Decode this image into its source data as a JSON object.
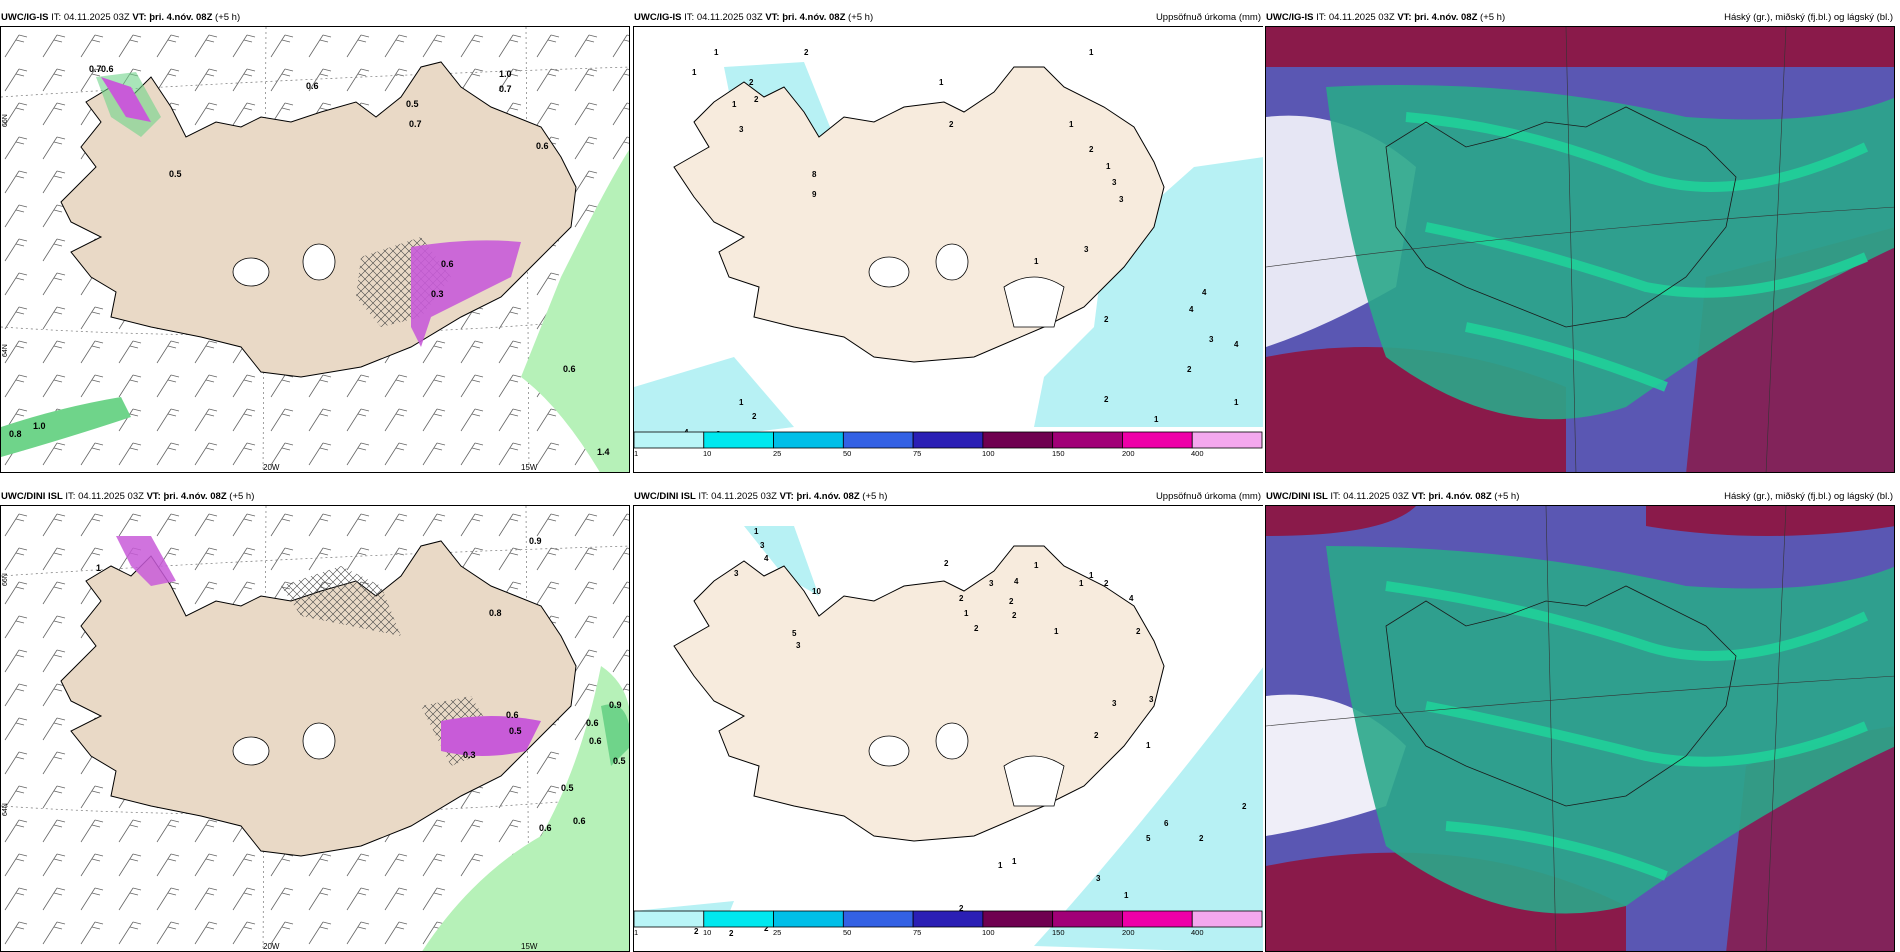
{
  "top_row": {
    "p1": {
      "model": "UWC/IG-IS",
      "it_label": "IT:",
      "it_value": "04.11.2025 03Z",
      "vt_label": "VT:",
      "vt_value": "þri. 4.nóv. 08Z",
      "lead": "(+5 h)",
      "right_title": ""
    },
    "p2": {
      "model": "UWC/IG-IS",
      "it_label": "IT:",
      "it_value": "04.11.2025 03Z",
      "vt_label": "VT:",
      "vt_value": "þri. 4.nóv. 08Z",
      "lead": "(+5 h)",
      "right_title": "Uppsöfnuð úrkoma (mm)"
    },
    "p3": {
      "model": "UWC/IG-IS",
      "it_label": "IT:",
      "it_value": "04.11.2025 03Z",
      "vt_label": "VT:",
      "vt_value": "þri. 4.nóv. 08Z",
      "lead": "(+5 h)",
      "right_title": "Háský (gr.), miðský (fj.bl.) og lágský (bl.)"
    }
  },
  "bottom_row": {
    "p4": {
      "model": "UWC/DINI ISL",
      "it_label": "IT:",
      "it_value": "04.11.2025 03Z",
      "vt_label": "VT:",
      "vt_value": "þri. 4.nóv. 08Z",
      "lead": "(+5 h)",
      "right_title": ""
    },
    "p5": {
      "model": "UWC/DINI ISL",
      "it_label": "IT:",
      "it_value": "04.11.2025 03Z",
      "vt_label": "VT:",
      "vt_value": "þri. 4.nóv. 08Z",
      "lead": "(+5 h)",
      "right_title": "Uppsöfnuð úrkoma (mm)"
    },
    "p6": {
      "model": "UWC/DINI ISL",
      "it_label": "IT:",
      "it_value": "04.11.2025 03Z",
      "vt_label": "VT:",
      "vt_value": "þri. 4.nóv. 08Z",
      "lead": "(+5 h)",
      "right_title": "Háský (gr.), miðský (fj.bl.) og lágský (bl.)"
    }
  },
  "axis_labels": {
    "lon_20w": "20W",
    "lon_15w": "15W",
    "lat_66n": "66N",
    "lat_64n": "64N"
  },
  "colorbar": {
    "ticks": [
      "1",
      "10",
      "25",
      "50",
      "75",
      "100",
      "150",
      "200",
      "400"
    ],
    "colors": [
      "#b9f5f7",
      "#00e8ef",
      "#00bfe8",
      "#3361e4",
      "#2b1fb5",
      "#6f0050",
      "#a10077",
      "#ee00a8",
      "#f4a8ee"
    ]
  },
  "map_labels_p1": [
    "0.6",
    "0.7",
    "0.6",
    "0.5",
    "0.7",
    "1.0",
    "0.7",
    "0.6",
    "0.5",
    "0.3",
    "0.6",
    "0.8",
    "1.0",
    "0.6",
    "1.4"
  ],
  "map_labels_p2": [
    "1",
    "1",
    "2",
    "2",
    "1",
    "2",
    "3",
    "8",
    "9",
    "1",
    "2",
    "1",
    "1",
    "2",
    "1",
    "3",
    "3",
    "3",
    "4",
    "1",
    "2",
    "4",
    "4",
    "3",
    "2",
    "1",
    "1",
    "4",
    "3",
    "2",
    "2",
    "1"
  ],
  "map_labels_p4": [
    "1",
    "0.9",
    "0.8",
    "0.3",
    "0.6",
    "0.5",
    "0.9",
    "0.6",
    "0.6",
    "0.5",
    "0.5",
    "0.6",
    "0.6"
  ],
  "map_labels_p5": [
    "1",
    "3",
    "4",
    "3",
    "10",
    "5",
    "3",
    "2",
    "2",
    "1",
    "2",
    "3",
    "2",
    "4",
    "2",
    "1",
    "1",
    "1",
    "2",
    "4",
    "1",
    "2",
    "3",
    "3",
    "2",
    "1",
    "6",
    "5",
    "3",
    "2",
    "2",
    "1",
    "1",
    "1",
    "2",
    "2",
    "2",
    "2"
  ],
  "colors": {
    "land": "#f7ebdd",
    "land_p1": "#e9d9c6",
    "sea": "#ffffff",
    "precip_light": "#b7f1f4",
    "green_light": "#b6f1b8",
    "green_mid": "#6fd48a",
    "magenta": "#c85bd8",
    "cloud_green": "#2aa78a",
    "cloud_bright": "#1ed49a",
    "cloud_purple": "#5a57b3",
    "cloud_red": "#8a1a4a"
  }
}
